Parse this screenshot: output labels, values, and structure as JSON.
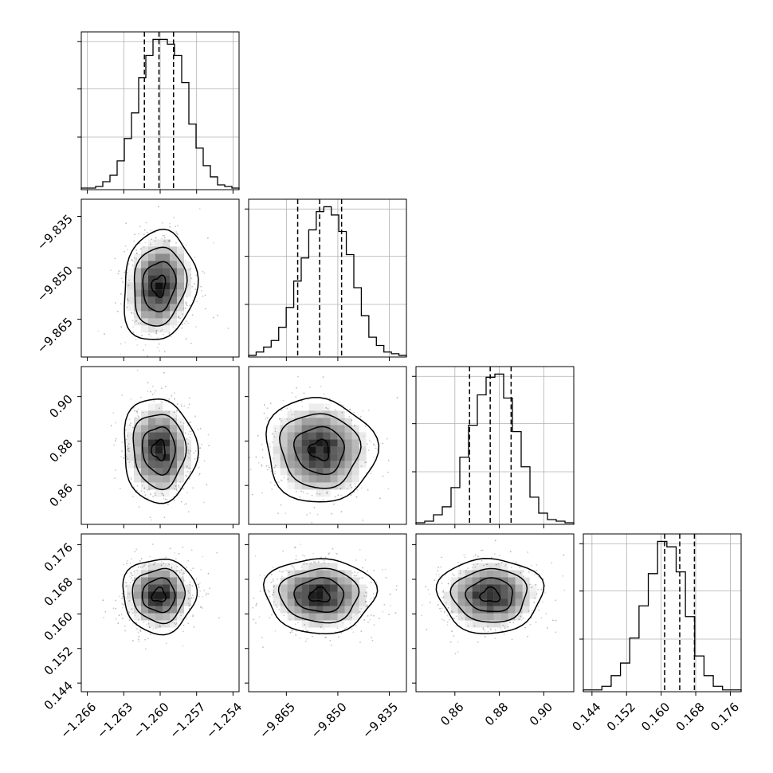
{
  "chart_data": {
    "type": "corner",
    "title": "",
    "colors": {
      "line": "#000000",
      "grid": "#b0b0b0",
      "scatter": "#9a9a9a",
      "density": "#000000"
    },
    "grid": true,
    "quantile_lines": "dashed",
    "params": [
      {
        "range": [
          -1.2665,
          -1.2535
        ],
        "ticks": [
          "−1.266",
          "−1.263",
          "−1.260",
          "−1.257",
          "−1.254"
        ],
        "tick_values": [
          -1.266,
          -1.263,
          -1.26,
          -1.257,
          -1.254
        ],
        "quantiles": [
          -1.2613,
          -1.2601,
          -1.2589
        ],
        "hist": [
          1,
          1,
          2,
          5,
          9,
          18,
          32,
          48,
          70,
          84,
          94,
          94,
          91,
          84,
          67,
          41,
          26,
          15,
          8,
          3,
          2,
          1
        ]
      },
      {
        "range": [
          -9.876,
          -9.83
        ],
        "ticks": [
          "−9.865",
          "−9.850",
          "−9.835"
        ],
        "tick_values": [
          -9.865,
          -9.85,
          -9.835
        ],
        "quantiles": [
          -9.8617,
          -9.8553,
          -9.8489
        ],
        "hist": [
          1,
          3,
          6,
          10,
          18,
          30,
          46,
          60,
          77,
          88,
          91,
          86,
          76,
          62,
          42,
          25,
          12,
          7,
          3,
          2,
          1
        ]
      },
      {
        "range": [
          0.8425,
          0.9135
        ],
        "ticks": [
          "0.86",
          "0.88",
          "0.90"
        ],
        "tick_values": [
          0.86,
          0.88,
          0.9
        ],
        "quantiles": [
          0.8666,
          0.8759,
          0.8853
        ],
        "hist": [
          1,
          2,
          6,
          11,
          23,
          42,
          62,
          81,
          92,
          94,
          79,
          58,
          36,
          17,
          7,
          3,
          2,
          1
        ]
      },
      {
        "range": [
          0.142,
          0.1785
        ],
        "ticks": [
          "0.144",
          "0.152",
          "0.160",
          "0.168",
          "0.176"
        ],
        "tick_values": [
          0.144,
          0.152,
          0.16,
          0.168,
          0.176
        ],
        "quantiles": [
          0.1608,
          0.1643,
          0.1677
        ],
        "hist": [
          1,
          1,
          3,
          9,
          16,
          30,
          48,
          66,
          84,
          81,
          67,
          42,
          20,
          9,
          3,
          1,
          1
        ]
      }
    ]
  }
}
